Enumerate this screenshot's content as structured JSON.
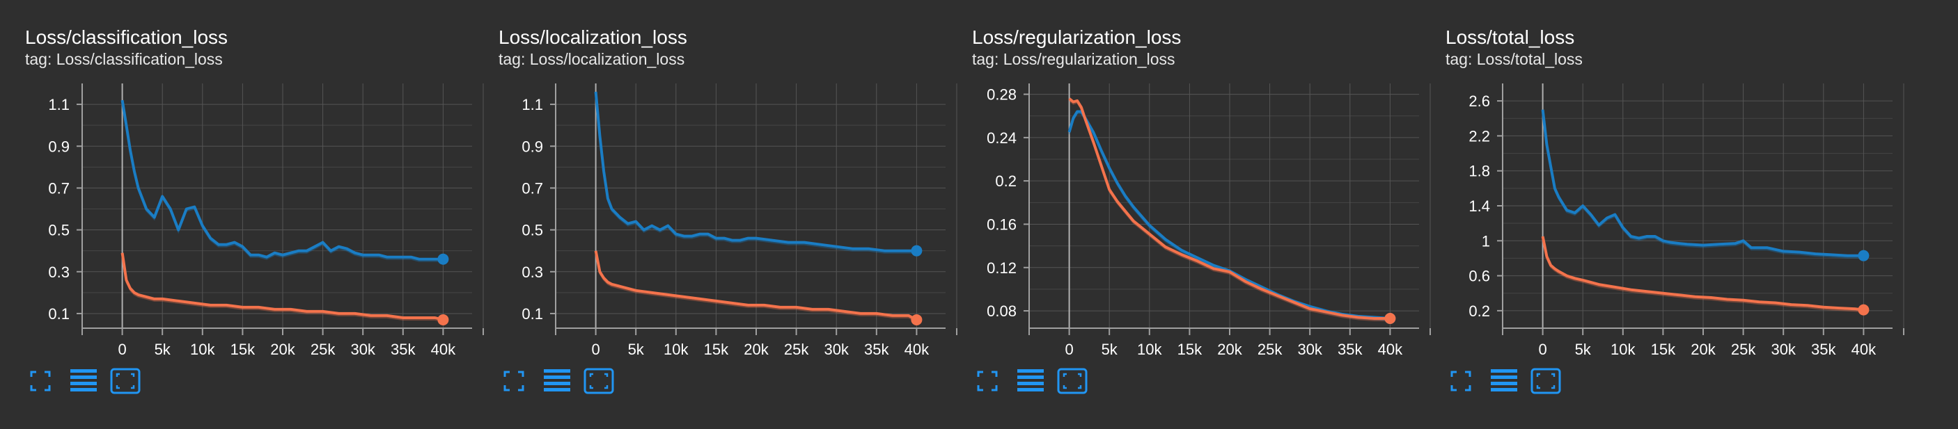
{
  "colors": {
    "background": "#2f2f2f",
    "grid": "#555555",
    "axis": "#a0a0a0",
    "series_blue": "#1a7dc4",
    "series_orange": "#f4734c",
    "toolbar_icon": "#2196f3"
  },
  "toolbar_icons": [
    "fit-domain-icon",
    "toggle-log-scale-icon",
    "zoom-box-icon"
  ],
  "cards": [
    {
      "title": "Loss/classification_loss",
      "tag": "tag: Loss/classification_loss"
    },
    {
      "title": "Loss/localization_loss",
      "tag": "tag: Loss/localization_loss"
    },
    {
      "title": "Loss/regularization_loss",
      "tag": "tag: Loss/regularization_loss"
    },
    {
      "title": "Loss/total_loss",
      "tag": "tag: Loss/total_loss"
    }
  ],
  "chart_data": [
    {
      "type": "line",
      "title": "Loss/classification_loss",
      "xlabel": "",
      "ylabel": "",
      "xlim": [
        -5000,
        45000
      ],
      "ylim": [
        0.03,
        1.2
      ],
      "xticks": [
        0,
        5000,
        10000,
        15000,
        20000,
        25000,
        30000,
        35000,
        40000
      ],
      "xtick_labels": [
        "0",
        "5k",
        "10k",
        "15k",
        "20k",
        "25k",
        "30k",
        "35k",
        "40k"
      ],
      "yticks": [
        0.1,
        0.3,
        0.5,
        0.7,
        0.9,
        1.1
      ],
      "ytick_labels": [
        "0.1",
        "0.3",
        "0.5",
        "0.7",
        "0.9",
        "1.1"
      ],
      "grid": true,
      "series": [
        {
          "color": "#1a7dc4",
          "x": [
            0,
            500,
            1000,
            1500,
            2000,
            3000,
            4000,
            5000,
            6000,
            7000,
            8000,
            9000,
            10000,
            11000,
            12000,
            13000,
            14000,
            15000,
            16000,
            17000,
            18000,
            19000,
            20000,
            21000,
            22000,
            23000,
            24000,
            25000,
            26000,
            27000,
            28000,
            29000,
            30000,
            31000,
            32000,
            33000,
            34000,
            35000,
            36000,
            37000,
            38000,
            39000,
            40000
          ],
          "y": [
            1.12,
            1.0,
            0.88,
            0.78,
            0.7,
            0.6,
            0.56,
            0.66,
            0.6,
            0.5,
            0.6,
            0.61,
            0.52,
            0.46,
            0.43,
            0.43,
            0.44,
            0.42,
            0.38,
            0.38,
            0.37,
            0.39,
            0.38,
            0.39,
            0.4,
            0.4,
            0.42,
            0.44,
            0.4,
            0.42,
            0.41,
            0.39,
            0.38,
            0.38,
            0.38,
            0.37,
            0.37,
            0.37,
            0.37,
            0.36,
            0.36,
            0.36,
            0.36
          ]
        },
        {
          "color": "#f4734c",
          "x": [
            0,
            500,
            1000,
            1500,
            2000,
            3000,
            4000,
            5000,
            7000,
            9000,
            11000,
            13000,
            15000,
            17000,
            19000,
            21000,
            23000,
            25000,
            27000,
            29000,
            31000,
            33000,
            35000,
            37000,
            39000,
            40000
          ],
          "y": [
            0.39,
            0.26,
            0.22,
            0.2,
            0.19,
            0.18,
            0.17,
            0.17,
            0.16,
            0.15,
            0.14,
            0.14,
            0.13,
            0.13,
            0.12,
            0.12,
            0.11,
            0.11,
            0.1,
            0.1,
            0.09,
            0.09,
            0.08,
            0.08,
            0.08,
            0.07
          ]
        }
      ]
    },
    {
      "type": "line",
      "title": "Loss/localization_loss",
      "xlabel": "",
      "ylabel": "",
      "xlim": [
        -5000,
        45000
      ],
      "ylim": [
        0.03,
        1.2
      ],
      "xticks": [
        0,
        5000,
        10000,
        15000,
        20000,
        25000,
        30000,
        35000,
        40000
      ],
      "xtick_labels": [
        "0",
        "5k",
        "10k",
        "15k",
        "20k",
        "25k",
        "30k",
        "35k",
        "40k"
      ],
      "yticks": [
        0.1,
        0.3,
        0.5,
        0.7,
        0.9,
        1.1
      ],
      "ytick_labels": [
        "0.1",
        "0.3",
        "0.5",
        "0.7",
        "0.9",
        "1.1"
      ],
      "grid": true,
      "series": [
        {
          "color": "#1a7dc4",
          "x": [
            0,
            500,
            1000,
            1500,
            2000,
            3000,
            4000,
            5000,
            6000,
            7000,
            8000,
            9000,
            10000,
            11000,
            12000,
            13000,
            14000,
            15000,
            16000,
            17000,
            18000,
            19000,
            20000,
            22000,
            24000,
            26000,
            28000,
            30000,
            32000,
            34000,
            36000,
            38000,
            40000
          ],
          "y": [
            1.16,
            0.95,
            0.78,
            0.65,
            0.6,
            0.56,
            0.53,
            0.54,
            0.5,
            0.52,
            0.5,
            0.52,
            0.48,
            0.47,
            0.47,
            0.48,
            0.48,
            0.46,
            0.46,
            0.45,
            0.45,
            0.46,
            0.46,
            0.45,
            0.44,
            0.44,
            0.43,
            0.42,
            0.41,
            0.41,
            0.4,
            0.4,
            0.4
          ]
        },
        {
          "color": "#f4734c",
          "x": [
            0,
            500,
            1000,
            1500,
            2000,
            3000,
            4000,
            5000,
            7000,
            9000,
            11000,
            13000,
            15000,
            17000,
            19000,
            21000,
            23000,
            25000,
            27000,
            29000,
            31000,
            33000,
            35000,
            37000,
            39000,
            40000
          ],
          "y": [
            0.4,
            0.3,
            0.27,
            0.25,
            0.24,
            0.23,
            0.22,
            0.21,
            0.2,
            0.19,
            0.18,
            0.17,
            0.16,
            0.15,
            0.14,
            0.14,
            0.13,
            0.13,
            0.12,
            0.12,
            0.11,
            0.1,
            0.1,
            0.09,
            0.09,
            0.07
          ]
        }
      ]
    },
    {
      "type": "line",
      "title": "Loss/regularization_loss",
      "xlabel": "",
      "ylabel": "",
      "xlim": [
        -5000,
        45000
      ],
      "ylim": [
        0.064,
        0.29
      ],
      "xticks": [
        0,
        5000,
        10000,
        15000,
        20000,
        25000,
        30000,
        35000,
        40000
      ],
      "xtick_labels": [
        "0",
        "5k",
        "10k",
        "15k",
        "20k",
        "25k",
        "30k",
        "35k",
        "40k"
      ],
      "yticks": [
        0.08,
        0.12,
        0.16,
        0.2,
        0.24,
        0.28
      ],
      "ytick_labels": [
        "0.08",
        "0.12",
        "0.16",
        "0.2",
        "0.24",
        "0.28"
      ],
      "grid": true,
      "series": [
        {
          "color": "#1a7dc4",
          "x": [
            0,
            500,
            1000,
            1500,
            2000,
            3000,
            4000,
            5000,
            6000,
            7000,
            8000,
            10000,
            12000,
            14000,
            16000,
            18000,
            20000,
            22000,
            24000,
            26000,
            28000,
            30000,
            32000,
            34000,
            36000,
            38000,
            40000
          ],
          "y": [
            0.245,
            0.258,
            0.264,
            0.264,
            0.258,
            0.245,
            0.228,
            0.212,
            0.198,
            0.186,
            0.176,
            0.159,
            0.146,
            0.136,
            0.129,
            0.122,
            0.117,
            0.109,
            0.102,
            0.095,
            0.089,
            0.084,
            0.08,
            0.077,
            0.075,
            0.074,
            0.073
          ]
        },
        {
          "color": "#f4734c",
          "x": [
            0,
            500,
            1000,
            1500,
            2000,
            3000,
            4000,
            5000,
            6000,
            7000,
            8000,
            10000,
            12000,
            14000,
            16000,
            18000,
            20000,
            22000,
            24000,
            26000,
            28000,
            30000,
            32000,
            34000,
            36000,
            38000,
            40000
          ],
          "y": [
            0.276,
            0.273,
            0.274,
            0.268,
            0.257,
            0.236,
            0.214,
            0.192,
            0.181,
            0.172,
            0.163,
            0.151,
            0.139,
            0.132,
            0.126,
            0.119,
            0.116,
            0.107,
            0.1,
            0.094,
            0.088,
            0.082,
            0.079,
            0.076,
            0.074,
            0.073,
            0.073
          ]
        }
      ]
    },
    {
      "type": "line",
      "title": "Loss/total_loss",
      "xlabel": "",
      "ylabel": "",
      "xlim": [
        -5000,
        45000
      ],
      "ylim": [
        0.0,
        2.8
      ],
      "xticks": [
        0,
        5000,
        10000,
        15000,
        20000,
        25000,
        30000,
        35000,
        40000
      ],
      "xtick_labels": [
        "0",
        "5k",
        "10k",
        "15k",
        "20k",
        "25k",
        "30k",
        "35k",
        "40k"
      ],
      "yticks": [
        0.2,
        0.6,
        1.0,
        1.4,
        1.8,
        2.2,
        2.6
      ],
      "ytick_labels": [
        "0.2",
        "0.6",
        "1",
        "1.4",
        "1.8",
        "2.2",
        "2.6"
      ],
      "grid": true,
      "series": [
        {
          "color": "#1a7dc4",
          "x": [
            0,
            500,
            1000,
            1500,
            2000,
            3000,
            4000,
            5000,
            6000,
            7000,
            8000,
            9000,
            10000,
            11000,
            12000,
            13000,
            14000,
            15000,
            16000,
            18000,
            20000,
            22000,
            24000,
            25000,
            26000,
            28000,
            30000,
            32000,
            34000,
            36000,
            38000,
            40000
          ],
          "y": [
            2.5,
            2.1,
            1.85,
            1.6,
            1.5,
            1.35,
            1.32,
            1.4,
            1.3,
            1.18,
            1.26,
            1.3,
            1.15,
            1.05,
            1.03,
            1.05,
            1.05,
            1.0,
            0.98,
            0.96,
            0.95,
            0.96,
            0.97,
            1.0,
            0.92,
            0.92,
            0.88,
            0.87,
            0.85,
            0.84,
            0.83,
            0.83
          ]
        },
        {
          "color": "#f4734c",
          "x": [
            0,
            500,
            1000,
            1500,
            2000,
            3000,
            4000,
            5000,
            7000,
            9000,
            11000,
            13000,
            15000,
            17000,
            19000,
            21000,
            23000,
            25000,
            27000,
            29000,
            31000,
            33000,
            35000,
            37000,
            39000,
            40000
          ],
          "y": [
            1.05,
            0.82,
            0.72,
            0.68,
            0.65,
            0.6,
            0.57,
            0.55,
            0.5,
            0.47,
            0.44,
            0.42,
            0.4,
            0.38,
            0.36,
            0.35,
            0.33,
            0.32,
            0.3,
            0.29,
            0.27,
            0.26,
            0.24,
            0.23,
            0.22,
            0.21
          ]
        }
      ]
    }
  ]
}
